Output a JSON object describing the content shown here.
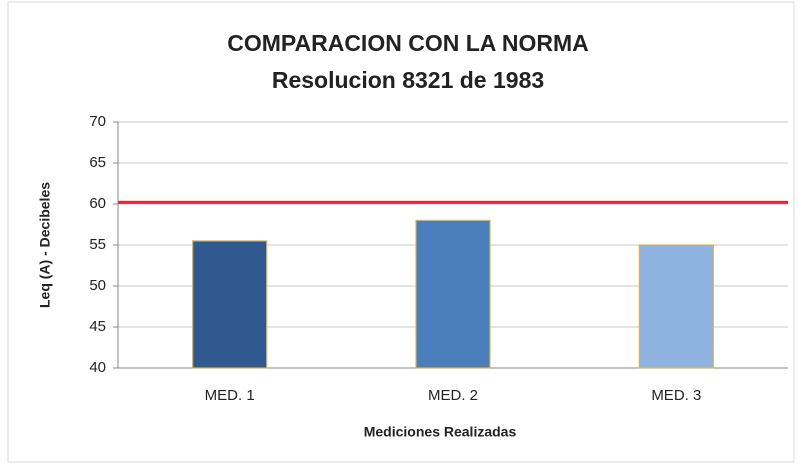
{
  "chart_data": {
    "type": "bar",
    "title": "COMPARACION CON LA NORMA",
    "subtitle": "Resolucion 8321 de 1983",
    "x_label": "Mediciones Realizadas",
    "y_label": "Leq (A) - Decibeles",
    "categories": [
      "MED. 1",
      "MED. 2",
      "MED. 3"
    ],
    "values": [
      55.5,
      58,
      55
    ],
    "colors": [
      "#30598f",
      "#4a7ebb",
      "#8fb3e0"
    ],
    "reference_line": 60.2,
    "reference_color": "#e8262e",
    "ylim": [
      40,
      70
    ],
    "yticks": [
      40,
      45,
      50,
      55,
      60,
      65,
      70
    ],
    "grid": true
  }
}
